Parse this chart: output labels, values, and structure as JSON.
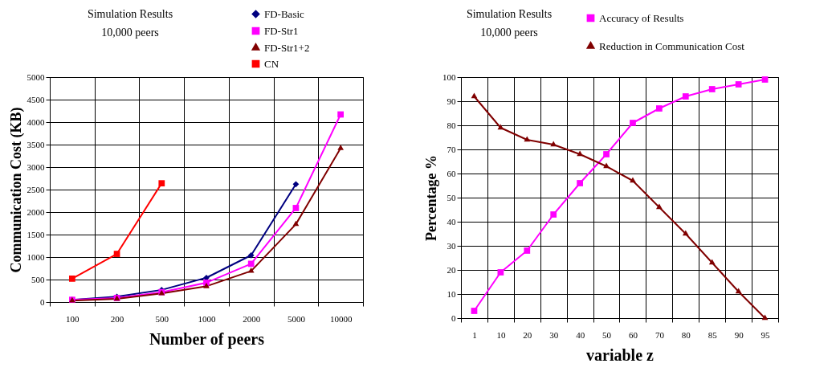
{
  "chart_data": [
    {
      "type": "line",
      "title": "Simulation Results",
      "subtitle": "10,000 peers",
      "xlabel": "Number of peers",
      "ylabel": "Communication Cost (KB)",
      "categories": [
        "100",
        "200",
        "500",
        "1000",
        "2000",
        "5000",
        "10000"
      ],
      "series": [
        {
          "name": "FD-Basic",
          "color": "#000080",
          "marker": "diamond",
          "values": [
            50,
            120,
            270,
            540,
            1040,
            2620,
            null
          ]
        },
        {
          "name": "FD-Str1",
          "color": "#ff00ff",
          "marker": "square",
          "values": [
            50,
            90,
            220,
            430,
            850,
            2090,
            4170
          ]
        },
        {
          "name": "FD-Str1+2",
          "color": "#800000",
          "marker": "triangle",
          "values": [
            30,
            70,
            190,
            350,
            690,
            1730,
            3420
          ]
        },
        {
          "name": "CN",
          "color": "#ff0000",
          "marker": "square",
          "values": [
            520,
            1070,
            2640,
            null,
            null,
            null,
            null
          ]
        }
      ],
      "ylim": [
        0,
        5000
      ],
      "yticks": [
        0,
        500,
        1000,
        1500,
        2000,
        2500,
        3000,
        3500,
        4000,
        4500,
        5000
      ],
      "grid": true,
      "legend": "top right"
    },
    {
      "type": "line",
      "title": "Simulation Results",
      "subtitle": "10,000 peers",
      "xlabel": "variable z",
      "ylabel": "Percentage  %",
      "categories": [
        "1",
        "10",
        "20",
        "30",
        "40",
        "50",
        "60",
        "70",
        "80",
        "85",
        "90",
        "95"
      ],
      "series": [
        {
          "name": "Accuracy of Results",
          "color": "#ff00ff",
          "marker": "square",
          "values": [
            3,
            19,
            28,
            43,
            56,
            68,
            81,
            87,
            92,
            95,
            97,
            99
          ]
        },
        {
          "name": "Reduction in Communication Cost",
          "color": "#800000",
          "marker": "triangle",
          "values": [
            92,
            79,
            74,
            72,
            68,
            63,
            57,
            46,
            35,
            23,
            11,
            0
          ]
        }
      ],
      "ylim": [
        0,
        100
      ],
      "yticks": [
        0,
        10,
        20,
        30,
        40,
        50,
        60,
        70,
        80,
        90,
        100
      ],
      "grid": true,
      "legend": "top right"
    }
  ]
}
